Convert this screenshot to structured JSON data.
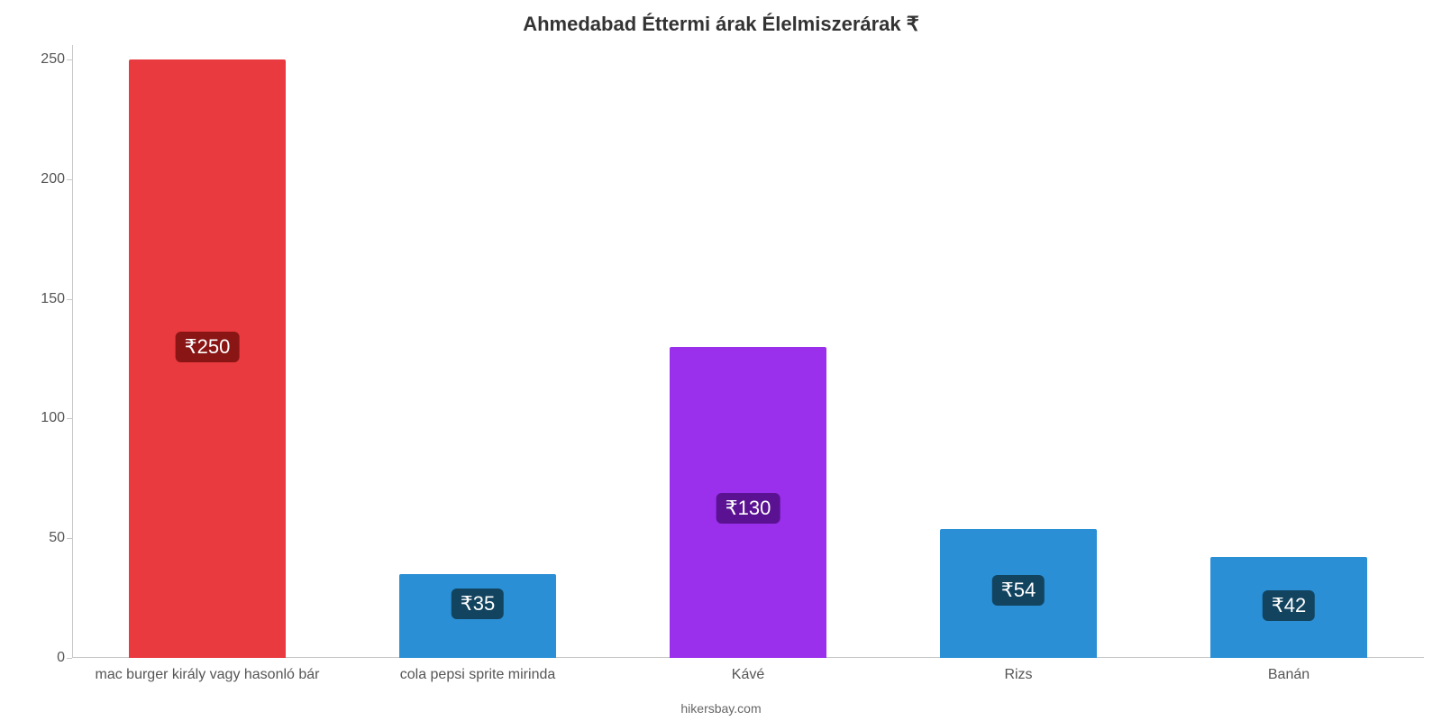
{
  "chart": {
    "type": "bar",
    "title": "Ahmedabad Éttermi árak Élelmiszerárak ₹",
    "title_fontsize": 22,
    "title_color": "#333333",
    "credit": "hikersbay.com",
    "credit_fontsize": 14,
    "credit_color": "#666666",
    "background_color": "#ffffff",
    "axis_color": "#c7c7c7",
    "ylim": [
      0,
      256
    ],
    "yticks": [
      0,
      50,
      100,
      150,
      200,
      250
    ],
    "ytick_fontsize": 16,
    "xlabel_fontsize": 16,
    "bar_width_ratio": 0.58,
    "value_label_fontsize": 22,
    "categories": [
      "mac burger király vagy hasonló bár",
      "cola pepsi sprite mirinda",
      "Kávé",
      "Rizs",
      "Banán"
    ],
    "values": [
      250,
      35,
      130,
      54,
      42
    ],
    "value_labels": [
      "₹250",
      "₹35",
      "₹130",
      "₹54",
      "₹42"
    ],
    "bar_colors": [
      "#e83a3f",
      "#2a8fd4",
      "#9b30ec",
      "#2a8fd4",
      "#2a8fd4"
    ],
    "badge_colors": [
      "#8a1515",
      "#124460",
      "#5a1292",
      "#124460",
      "#124460"
    ],
    "label_y_ratio": [
      0.52,
      0.65,
      0.48,
      0.52,
      0.52
    ]
  }
}
